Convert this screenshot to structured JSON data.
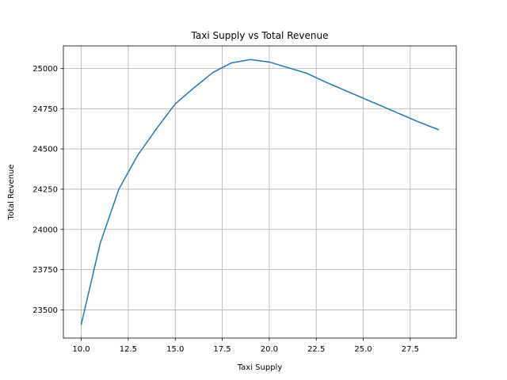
{
  "chart_data": {
    "type": "line",
    "title": "Taxi Supply vs Total Revenue",
    "xlabel": "Taxi Supply",
    "ylabel": "Total Revenue",
    "xlim": [
      9.05,
      29.95
    ],
    "ylim": [
      23325,
      25140
    ],
    "xticks": [
      10.0,
      12.5,
      15.0,
      17.5,
      20.0,
      22.5,
      25.0,
      27.5
    ],
    "xtick_labels": [
      "10.0",
      "12.5",
      "15.0",
      "17.5",
      "20.0",
      "22.5",
      "25.0",
      "27.5"
    ],
    "yticks": [
      23500,
      23750,
      24000,
      24250,
      24500,
      24750,
      25000
    ],
    "ytick_labels": [
      "23500",
      "23750",
      "24000",
      "24250",
      "24500",
      "24750",
      "25000"
    ],
    "grid": true,
    "series": [
      {
        "color": "#1f77b4",
        "x": [
          10,
          11,
          12,
          13,
          14,
          15,
          16,
          17,
          18,
          19,
          20,
          21,
          22,
          23,
          24,
          25,
          26,
          27,
          28,
          29
        ],
        "y": [
          23410,
          23910,
          24250,
          24460,
          24625,
          24780,
          24880,
          24975,
          25035,
          25055,
          25040,
          25005,
          24970,
          24915,
          24865,
          24815,
          24765,
          24715,
          24665,
          24620
        ]
      }
    ]
  }
}
